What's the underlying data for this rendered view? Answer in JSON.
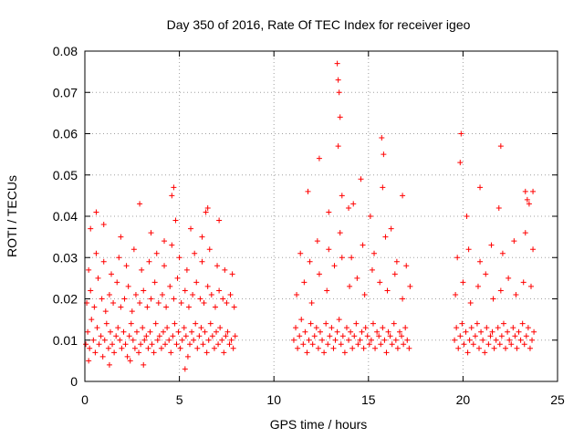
{
  "chart_data": {
    "type": "scatter",
    "title": "Day 350 of 2016, Rate Of TEC Index for receiver igeo",
    "xlabel": "GPS time / hours",
    "ylabel": "ROTI / TECUs",
    "xlim": [
      0,
      25
    ],
    "ylim": [
      0,
      0.08
    ],
    "xticks": [
      0,
      5,
      10,
      15,
      20,
      25
    ],
    "xtick_labels": [
      "0",
      "5",
      "10",
      "15",
      "20",
      "25"
    ],
    "yticks": [
      0,
      0.01,
      0.02,
      0.03,
      0.04,
      0.05,
      0.06,
      0.07,
      0.08
    ],
    "ytick_labels": [
      "0",
      "0.01",
      "0.02",
      "0.03",
      "0.04",
      "0.05",
      "0.06",
      "0.07",
      "0.08"
    ],
    "grid": true,
    "marker": "+",
    "color": "#ff0000",
    "series": [
      {
        "x": [
          0.05,
          0.15,
          0.25,
          0.35,
          0.45,
          0.55,
          0.65,
          0.75,
          0.85,
          0.95,
          1.05,
          1.15,
          1.25,
          1.35,
          1.45,
          1.55,
          1.65,
          1.75,
          1.85,
          1.95,
          2.05,
          2.15,
          2.25,
          2.35,
          2.45,
          2.55,
          2.65,
          2.75,
          2.85,
          2.95,
          3.05,
          3.15,
          3.25,
          3.35,
          3.45,
          3.55,
          3.65,
          3.75,
          3.85,
          3.95,
          4.05,
          4.15,
          4.25,
          4.35,
          4.45,
          4.55,
          4.65,
          4.75,
          4.85,
          4.95,
          5.05,
          5.15,
          5.25,
          5.35,
          5.45,
          5.55,
          5.65,
          5.75,
          5.85,
          5.95,
          6.05,
          6.15,
          6.25,
          6.35,
          6.45,
          6.55,
          6.65,
          6.75,
          6.85,
          6.95,
          7.05,
          7.15,
          7.25,
          7.35,
          7.45,
          7.55,
          7.65,
          7.75,
          7.85,
          7.95,
          0.1,
          0.3,
          0.5,
          0.7,
          0.9,
          1.1,
          1.3,
          1.5,
          1.7,
          1.9,
          2.1,
          2.3,
          2.5,
          2.7,
          2.9,
          3.1,
          3.3,
          3.5,
          3.7,
          3.9,
          4.1,
          4.3,
          4.5,
          4.7,
          4.9,
          5.1,
          5.3,
          5.5,
          5.7,
          5.9,
          6.1,
          6.3,
          6.5,
          6.7,
          6.9,
          7.1,
          7.3,
          7.5,
          7.7,
          7.9,
          0.2,
          0.6,
          1.0,
          1.4,
          1.8,
          2.2,
          2.6,
          3.0,
          3.4,
          3.8,
          4.2,
          4.6,
          5.0,
          5.4,
          5.8,
          6.2,
          6.6,
          7.0,
          7.4,
          7.8,
          0.3,
          0.6,
          1.0,
          1.9,
          2.9,
          3.5,
          4.2,
          4.6,
          4.7,
          4.8,
          5.6,
          6.2,
          6.4,
          6.5,
          7.1,
          0.2,
          1.3,
          2.4,
          3.1,
          5.3
        ],
        "y": [
          0.009,
          0.012,
          0.008,
          0.015,
          0.01,
          0.007,
          0.013,
          0.009,
          0.011,
          0.006,
          0.01,
          0.014,
          0.008,
          0.012,
          0.009,
          0.007,
          0.011,
          0.013,
          0.01,
          0.008,
          0.012,
          0.009,
          0.006,
          0.011,
          0.014,
          0.01,
          0.008,
          0.012,
          0.007,
          0.009,
          0.013,
          0.01,
          0.011,
          0.008,
          0.012,
          0.009,
          0.007,
          0.014,
          0.01,
          0.011,
          0.008,
          0.012,
          0.009,
          0.013,
          0.01,
          0.007,
          0.011,
          0.014,
          0.009,
          0.012,
          0.008,
          0.01,
          0.013,
          0.011,
          0.006,
          0.009,
          0.012,
          0.01,
          0.014,
          0.008,
          0.011,
          0.013,
          0.009,
          0.012,
          0.007,
          0.01,
          0.014,
          0.011,
          0.008,
          0.012,
          0.009,
          0.013,
          0.01,
          0.007,
          0.011,
          0.012,
          0.009,
          0.01,
          0.008,
          0.011,
          0.019,
          0.022,
          0.018,
          0.025,
          0.02,
          0.017,
          0.021,
          0.019,
          0.024,
          0.018,
          0.02,
          0.023,
          0.017,
          0.021,
          0.019,
          0.022,
          0.018,
          0.02,
          0.024,
          0.019,
          0.021,
          0.018,
          0.023,
          0.02,
          0.025,
          0.019,
          0.022,
          0.018,
          0.021,
          0.024,
          0.02,
          0.019,
          0.023,
          0.021,
          0.018,
          0.022,
          0.02,
          0.019,
          0.021,
          0.018,
          0.027,
          0.031,
          0.029,
          0.026,
          0.03,
          0.028,
          0.032,
          0.027,
          0.029,
          0.031,
          0.028,
          0.033,
          0.03,
          0.027,
          0.031,
          0.029,
          0.032,
          0.028,
          0.027,
          0.026,
          0.037,
          0.041,
          0.038,
          0.035,
          0.043,
          0.036,
          0.034,
          0.045,
          0.047,
          0.039,
          0.037,
          0.035,
          0.041,
          0.042,
          0.039,
          0.005,
          0.004,
          0.005,
          0.004,
          0.003
        ]
      },
      {
        "x": [
          11.05,
          11.15,
          11.25,
          11.35,
          11.45,
          11.55,
          11.65,
          11.75,
          11.85,
          11.95,
          12.05,
          12.15,
          12.25,
          12.35,
          12.45,
          12.55,
          12.65,
          12.75,
          12.85,
          12.95,
          13.05,
          13.15,
          13.25,
          13.35,
          13.45,
          13.55,
          13.65,
          13.75,
          13.85,
          13.95,
          14.05,
          14.15,
          14.25,
          14.35,
          14.45,
          14.55,
          14.65,
          14.75,
          14.85,
          14.95,
          15.05,
          15.15,
          15.25,
          15.35,
          15.45,
          15.55,
          15.65,
          15.75,
          15.85,
          15.95,
          16.05,
          16.15,
          16.25,
          16.35,
          16.45,
          16.55,
          16.65,
          16.75,
          16.85,
          16.95,
          17.05,
          17.15,
          11.2,
          11.6,
          12.0,
          12.4,
          12.8,
          13.2,
          13.6,
          14.0,
          14.4,
          14.8,
          15.2,
          15.6,
          16.0,
          16.4,
          16.8,
          17.2,
          11.4,
          11.9,
          12.3,
          12.9,
          13.5,
          14.1,
          14.7,
          15.3,
          15.9,
          16.5,
          17.0,
          13.35,
          13.4,
          13.45,
          13.5,
          13.4,
          12.4,
          13.6,
          13.95,
          14.6,
          15.7,
          15.8,
          15.75,
          16.8,
          15.1,
          11.8,
          12.9,
          14.2,
          16.2
        ],
        "y": [
          0.01,
          0.013,
          0.008,
          0.011,
          0.015,
          0.009,
          0.012,
          0.007,
          0.01,
          0.014,
          0.009,
          0.011,
          0.013,
          0.008,
          0.012,
          0.01,
          0.007,
          0.014,
          0.009,
          0.011,
          0.013,
          0.008,
          0.01,
          0.012,
          0.015,
          0.009,
          0.011,
          0.007,
          0.013,
          0.01,
          0.012,
          0.008,
          0.011,
          0.014,
          0.009,
          0.01,
          0.012,
          0.008,
          0.013,
          0.011,
          0.009,
          0.01,
          0.014,
          0.008,
          0.012,
          0.011,
          0.009,
          0.013,
          0.01,
          0.007,
          0.012,
          0.011,
          0.009,
          0.014,
          0.01,
          0.008,
          0.012,
          0.011,
          0.009,
          0.013,
          0.01,
          0.008,
          0.021,
          0.024,
          0.019,
          0.026,
          0.022,
          0.028,
          0.03,
          0.023,
          0.025,
          0.021,
          0.027,
          0.024,
          0.022,
          0.026,
          0.02,
          0.023,
          0.031,
          0.029,
          0.034,
          0.032,
          0.036,
          0.03,
          0.033,
          0.031,
          0.035,
          0.029,
          0.028,
          0.077,
          0.073,
          0.07,
          0.064,
          0.057,
          0.054,
          0.045,
          0.042,
          0.049,
          0.059,
          0.055,
          0.047,
          0.045,
          0.04,
          0.046,
          0.041,
          0.043,
          0.037
        ]
      },
      {
        "x": [
          19.55,
          19.65,
          19.75,
          19.85,
          19.95,
          20.05,
          20.15,
          20.25,
          20.35,
          20.45,
          20.55,
          20.65,
          20.75,
          20.85,
          20.95,
          21.05,
          21.15,
          21.25,
          21.35,
          21.45,
          21.55,
          21.65,
          21.75,
          21.85,
          21.95,
          22.05,
          22.15,
          22.25,
          22.35,
          22.45,
          22.55,
          22.65,
          22.75,
          22.85,
          22.95,
          23.05,
          23.15,
          23.25,
          23.35,
          23.45,
          23.55,
          23.65,
          23.75,
          19.6,
          20.0,
          20.4,
          20.8,
          21.2,
          21.6,
          22.0,
          22.4,
          22.8,
          23.2,
          23.6,
          19.7,
          20.3,
          20.9,
          21.5,
          22.1,
          22.7,
          23.3,
          23.7,
          19.9,
          19.85,
          20.9,
          21.9,
          22.0,
          23.3,
          23.4,
          23.5,
          23.7,
          20.2
        ],
        "y": [
          0.01,
          0.013,
          0.008,
          0.011,
          0.014,
          0.009,
          0.012,
          0.007,
          0.01,
          0.013,
          0.009,
          0.011,
          0.014,
          0.008,
          0.012,
          0.01,
          0.007,
          0.013,
          0.009,
          0.011,
          0.012,
          0.008,
          0.01,
          0.013,
          0.009,
          0.011,
          0.014,
          0.008,
          0.012,
          0.01,
          0.009,
          0.013,
          0.011,
          0.008,
          0.012,
          0.01,
          0.014,
          0.009,
          0.011,
          0.013,
          0.008,
          0.01,
          0.012,
          0.021,
          0.024,
          0.019,
          0.023,
          0.026,
          0.02,
          0.022,
          0.025,
          0.021,
          0.024,
          0.023,
          0.03,
          0.032,
          0.029,
          0.033,
          0.031,
          0.034,
          0.036,
          0.032,
          0.06,
          0.053,
          0.047,
          0.042,
          0.057,
          0.046,
          0.044,
          0.043,
          0.046,
          0.04
        ]
      }
    ]
  }
}
